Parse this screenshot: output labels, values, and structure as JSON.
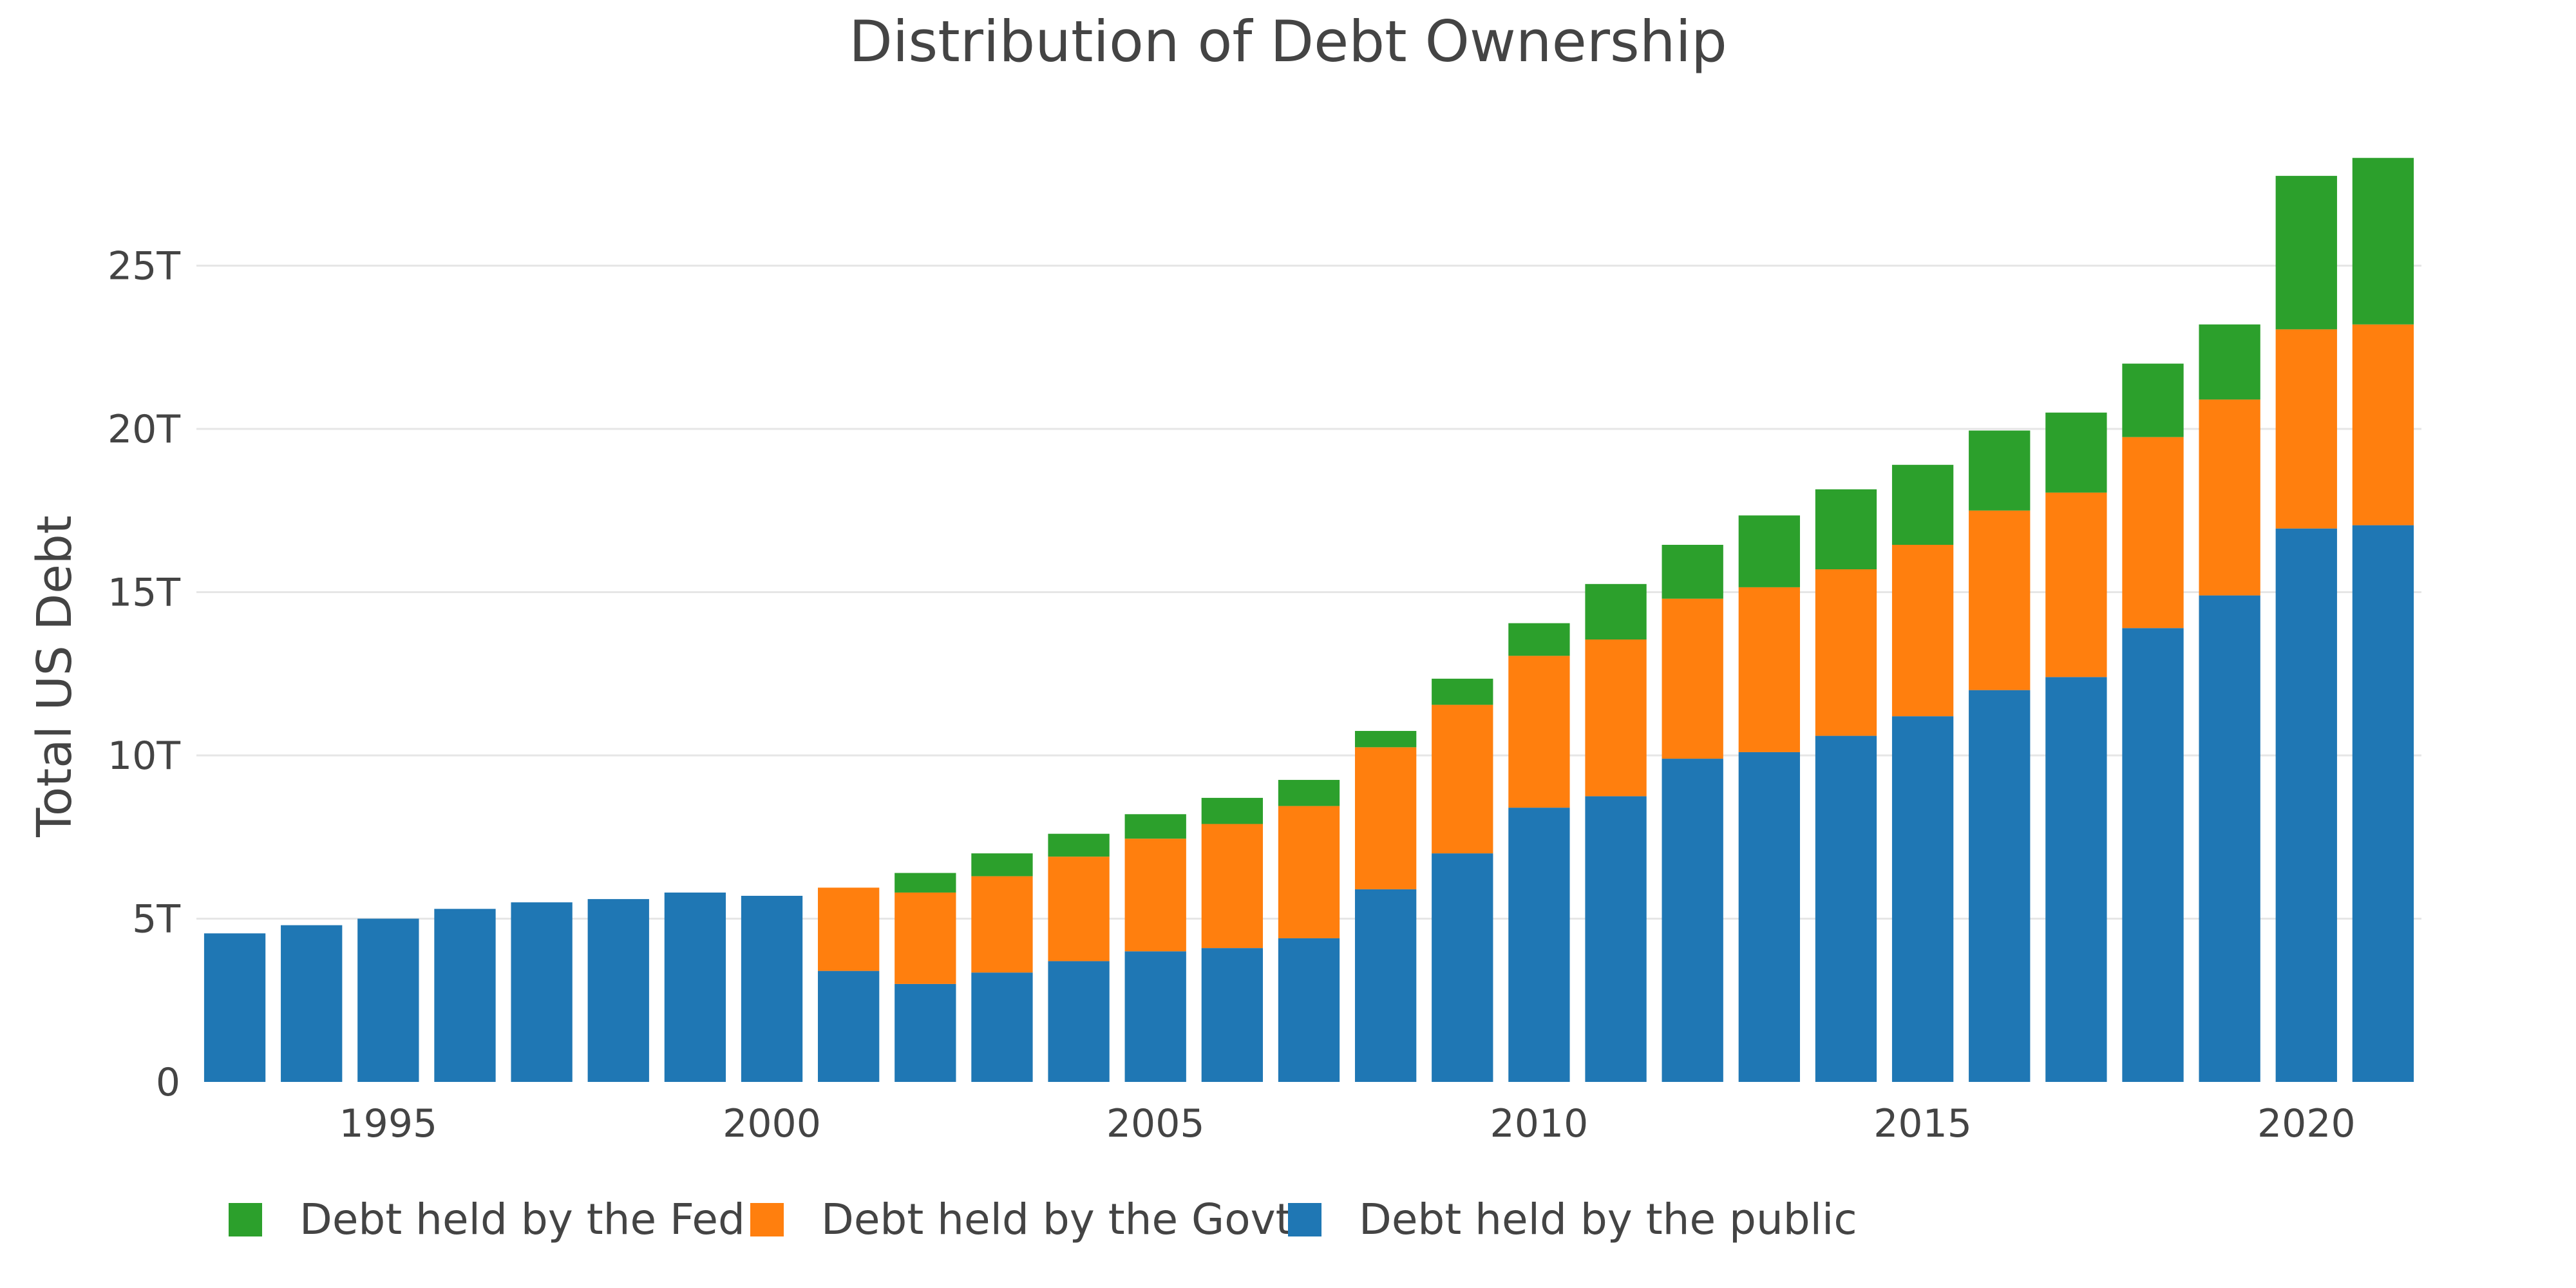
{
  "chart_data": {
    "type": "bar",
    "stacked": true,
    "title": "Distribution of Debt Ownership",
    "xlabel": "",
    "ylabel": "Total US Debt",
    "ylim": [
      0,
      28.6
    ],
    "grid": true,
    "legend_position": "bottom-left",
    "x": [
      1993,
      1994,
      1995,
      1996,
      1997,
      1998,
      1999,
      2000,
      2001,
      2002,
      2003,
      2004,
      2005,
      2006,
      2007,
      2008,
      2009,
      2010,
      2011,
      2012,
      2013,
      2014,
      2015,
      2016,
      2017,
      2018,
      2019,
      2020,
      2021
    ],
    "x_ticks": [
      {
        "value": 1995,
        "label": "1995"
      },
      {
        "value": 2000,
        "label": "2000"
      },
      {
        "value": 2005,
        "label": "2005"
      },
      {
        "value": 2010,
        "label": "2010"
      },
      {
        "value": 2015,
        "label": "2015"
      },
      {
        "value": 2020,
        "label": "2020"
      }
    ],
    "y_ticks": [
      {
        "value": 0,
        "label": "0"
      },
      {
        "value": 5,
        "label": "5T"
      },
      {
        "value": 10,
        "label": "10T"
      },
      {
        "value": 15,
        "label": "15T"
      },
      {
        "value": 20,
        "label": "20T"
      },
      {
        "value": 25,
        "label": "25T"
      }
    ],
    "series": [
      {
        "name": "Debt held by the public",
        "color": "#1f77b4",
        "values": [
          4.55,
          4.8,
          5.0,
          5.3,
          5.5,
          5.6,
          5.8,
          5.7,
          3.4,
          3.0,
          3.35,
          3.7,
          4.0,
          4.1,
          4.4,
          5.9,
          7.0,
          8.4,
          8.75,
          9.9,
          10.1,
          10.6,
          11.2,
          12.0,
          12.4,
          13.9,
          14.9,
          16.95,
          17.05
        ]
      },
      {
        "name": "Debt held by the Govt",
        "color": "#ff7f0e",
        "values": [
          0,
          0,
          0,
          0,
          0,
          0,
          0,
          0,
          2.55,
          2.8,
          2.95,
          3.2,
          3.45,
          3.8,
          4.05,
          4.35,
          4.55,
          4.65,
          4.8,
          4.9,
          5.05,
          5.1,
          5.25,
          5.5,
          5.65,
          5.85,
          6.0,
          6.1,
          6.15
        ]
      },
      {
        "name": "Debt held by the Fed",
        "color": "#2ca02c",
        "values": [
          0,
          0,
          0,
          0,
          0,
          0,
          0,
          0,
          0,
          0.6,
          0.7,
          0.7,
          0.75,
          0.8,
          0.8,
          0.5,
          0.8,
          1.0,
          1.7,
          1.65,
          2.2,
          2.45,
          2.45,
          2.45,
          2.45,
          2.25,
          2.3,
          4.7,
          5.1
        ]
      }
    ],
    "legend_order": [
      "Debt held by the Fed",
      "Debt held by the Govt",
      "Debt held by the public"
    ]
  }
}
